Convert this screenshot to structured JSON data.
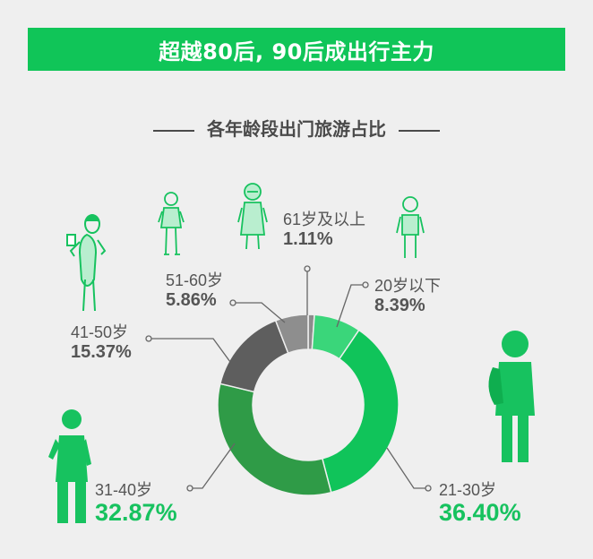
{
  "banner": {
    "title": "超越80后, 90后成出行主力"
  },
  "subtitle": "各年龄段出门旅游占比",
  "colors": {
    "banner": "#10c558",
    "figure_green": "#17c25f",
    "figure_light_green": "#3bd97c"
  },
  "chart_data": {
    "type": "pie",
    "donut": true,
    "title": "各年龄段出门旅游占比",
    "categories": [
      "61岁及以上",
      "20岁以下",
      "21-30岁",
      "31-40岁",
      "41-50岁",
      "51-60岁"
    ],
    "values": [
      1.11,
      8.39,
      36.4,
      32.87,
      15.37,
      5.86
    ],
    "labels": [
      "1.11%",
      "8.39%",
      "36.40%",
      "32.87%",
      "15.37%",
      "5.86%"
    ],
    "colors": [
      "#8c8c8c",
      "#3ad67a",
      "#10c45a",
      "#2f9b47",
      "#5e5e5e",
      "#8e8e8e"
    ]
  }
}
